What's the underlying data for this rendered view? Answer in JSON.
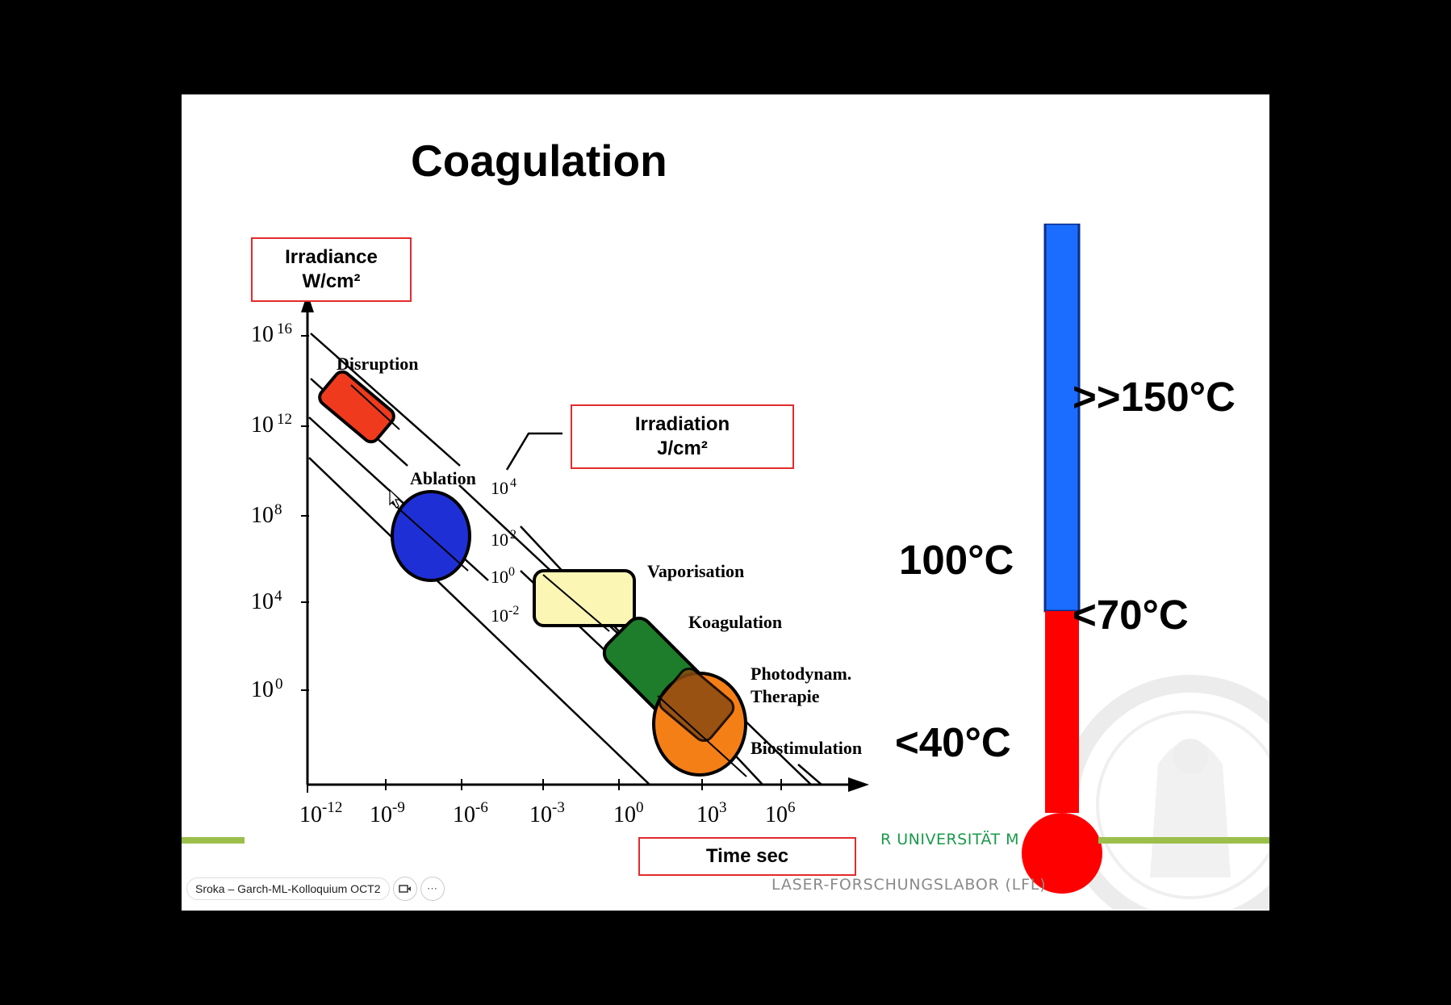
{
  "slide": {
    "title": "Coagulation"
  },
  "boxes": {
    "irradiance_line1": "Irradiance",
    "irradiance_line2": "W/cm²",
    "irradiation_line1": "Irradiation",
    "irradiation_line2": "J/cm²",
    "time_label": "Time sec"
  },
  "chart": {
    "y_ticks": [
      {
        "base": "10",
        "exp": "16"
      },
      {
        "base": "10",
        "exp": "12"
      },
      {
        "base": "10",
        "exp": "8"
      },
      {
        "base": "10",
        "exp": "4"
      },
      {
        "base": "10",
        "exp": "0"
      }
    ],
    "x_ticks": [
      {
        "base": "10",
        "exp": "-12"
      },
      {
        "base": "10",
        "exp": "-9"
      },
      {
        "base": "10",
        "exp": "-6"
      },
      {
        "base": "10",
        "exp": "-3"
      },
      {
        "base": "10",
        "exp": "0"
      },
      {
        "base": "10",
        "exp": "3"
      },
      {
        "base": "10",
        "exp": "6"
      }
    ],
    "fluence_labels": [
      {
        "base": "10",
        "exp": "4"
      },
      {
        "base": "10",
        "exp": "2"
      },
      {
        "base": "10",
        "exp": "0"
      },
      {
        "base": "10",
        "exp": "-2"
      }
    ],
    "regions": {
      "disruption": "Disruption",
      "ablation": "Ablation",
      "vaporisation": "Vaporisation",
      "koagulation": "Koagulation",
      "photodynam_1": "Photodynam.",
      "photodynam_2": "Therapie",
      "biostimulation": "Biostimulation"
    },
    "colors": {
      "disruption": "#f03a1e",
      "ablation": "#1f2fd6",
      "vaporisation": "#fbf6b4",
      "koagulation": "#1e7d2a",
      "biostimulation": "#f57f17"
    }
  },
  "thermometer": {
    "t_high": ">>150°C",
    "t_100": "100°C",
    "t_70": "<70°C",
    "t_40": "<40°C",
    "colors": {
      "hot": "#1a6dff",
      "warm": "#ff0000"
    }
  },
  "footer": {
    "university": "R UNIVERSITÄT M",
    "university_line2": "M",
    "lab": "LASER-FORSCHUNGSLABOR (LFL)"
  },
  "toolbar": {
    "presentation_name": "Sroka – Garch-ML-Kolloquium OCT2"
  }
}
